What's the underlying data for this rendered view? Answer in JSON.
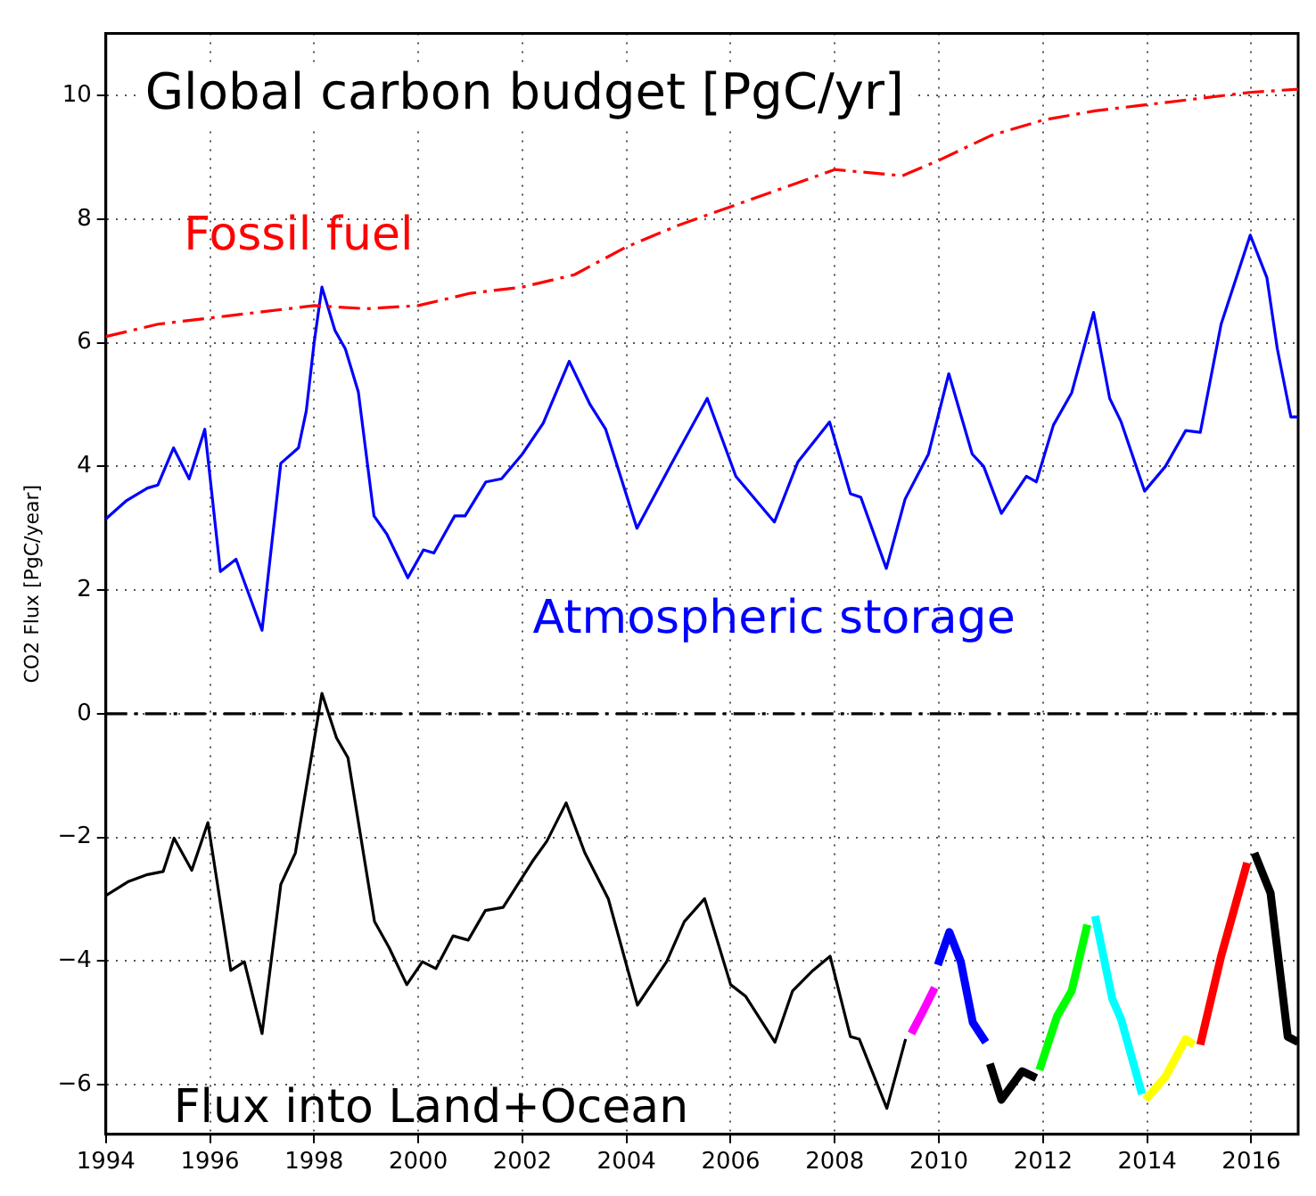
{
  "chart_data": {
    "type": "line",
    "title": "Global carbon budget [PgC/yr]",
    "ylabel": "CO2 Flux [PgC/year]",
    "xlim": [
      1994,
      2016.9
    ],
    "xticks": [
      1994,
      1996,
      1998,
      2000,
      2002,
      2004,
      2006,
      2008,
      2010,
      2012,
      2014,
      2016
    ],
    "ylim": [
      -6.8,
      11
    ],
    "yticks": [
      -6,
      -4,
      -2,
      0,
      2,
      4,
      6,
      8,
      10
    ],
    "grid": true,
    "legend": false,
    "marker": "none",
    "ref_lines": [
      {
        "axis": "y",
        "value": 0,
        "color": "#000000",
        "line_style": "dashed"
      }
    ],
    "series": [
      {
        "name": "Fossil fuel",
        "color": "#ff0000",
        "line_style": "dashed",
        "x": [
          1994,
          1995,
          1996,
          1997,
          1998,
          1999,
          2000,
          2001,
          2002,
          2003,
          2004,
          2005,
          2006,
          2007,
          2008,
          2009.3,
          2010,
          2011,
          2012,
          2013,
          2014,
          2015,
          2016,
          2016.9
        ],
        "values": [
          6.1,
          6.3,
          6.4,
          6.5,
          6.6,
          6.55,
          6.6,
          6.8,
          6.9,
          7.1,
          7.55,
          7.9,
          8.2,
          8.5,
          8.8,
          8.7,
          8.95,
          9.35,
          9.6,
          9.75,
          9.85,
          9.95,
          10.05,
          10.1
        ]
      },
      {
        "name": "Atmospheric storage",
        "color": "#0000ff",
        "x": [
          1994,
          1994.4,
          1994.8,
          1995,
          1995.3,
          1995.6,
          1995.9,
          1996.2,
          1996.5,
          1997,
          1997.36,
          1997.7,
          1997.85,
          1998,
          1998.15,
          1998.4,
          1998.6,
          1998.85,
          1999.15,
          1999.4,
          1999.8,
          2000.1,
          2000.3,
          2000.7,
          2000.9,
          2001.3,
          2001.6,
          2002,
          2002.4,
          2002.9,
          2003.3,
          2003.6,
          2003.9,
          2004.2,
          2004.88,
          2005.55,
          2006.1,
          2006.84,
          2007.29,
          2007.9,
          2008.3,
          2008.5,
          2008.99,
          2009.35,
          2009.8,
          2010.19,
          2010.64,
          2010.86,
          2011.2,
          2011.68,
          2011.87,
          2012.2,
          2012.55,
          2012.97,
          2013.28,
          2013.5,
          2013.95,
          2014.35,
          2014.74,
          2015.02,
          2015.42,
          2015.98,
          2016.3,
          2016.5,
          2016.76,
          2016.9
        ],
        "values": [
          3.15,
          3.45,
          3.65,
          3.7,
          4.3,
          3.8,
          4.6,
          2.3,
          2.5,
          1.35,
          4.05,
          4.3,
          4.9,
          6,
          6.9,
          6.2,
          5.9,
          5.2,
          3.2,
          2.9,
          2.2,
          2.65,
          2.6,
          3.2,
          3.2,
          3.75,
          3.8,
          4.2,
          4.7,
          5.7,
          5,
          4.6,
          3.8,
          3,
          4.07,
          5.1,
          3.84,
          3.1,
          4.07,
          4.72,
          3.56,
          3.5,
          2.35,
          3.47,
          4.2,
          5.5,
          4.2,
          4,
          3.24,
          3.84,
          3.75,
          4.67,
          5.19,
          6.49,
          5.1,
          4.72,
          3.6,
          4,
          4.58,
          4.55,
          6.3,
          7.74,
          7.05,
          5.9,
          4.8,
          4.8
        ]
      },
      {
        "name": "Flux into Land+Ocean",
        "color": "#000000",
        "x": [
          1994,
          1994.44,
          1994.8,
          1995.1,
          1995.31,
          1995.65,
          1995.96,
          1996.4,
          1996.66,
          1997,
          1997.36,
          1997.64,
          1998.15,
          1998.43,
          1998.65,
          1999.16,
          1999.44,
          1999.78,
          2000.08,
          2000.34,
          2000.67,
          2000.96,
          2001.29,
          2001.63,
          2002.19,
          2002.47,
          2002.84,
          2003.2,
          2003.65,
          2004.21,
          2004.77,
          2005.11,
          2005.5,
          2006,
          2006.29,
          2006.85,
          2007.19,
          2007.58,
          2007.91,
          2008.3,
          2008.47,
          2009,
          2009.36
        ],
        "values": [
          -2.94,
          -2.71,
          -2.6,
          -2.55,
          -2.01,
          -2.53,
          -1.76,
          -4.15,
          -4.01,
          -5.17,
          -2.76,
          -2.25,
          0.33,
          -0.39,
          -0.71,
          -3.36,
          -3.78,
          -4.38,
          -4.01,
          -4.12,
          -3.59,
          -3.66,
          -3.18,
          -3.13,
          -2.39,
          -2.06,
          -1.44,
          -2.25,
          -2.99,
          -4.71,
          -4.01,
          -3.36,
          -2.99,
          -4.38,
          -4.57,
          -5.31,
          -4.48,
          -4.15,
          -3.92,
          -5.22,
          -5.26,
          -6.38,
          -5.26
        ]
      },
      {
        "color": "#ff00ff",
        "x": [
          2009.47,
          2009.7,
          2009.92
        ],
        "values": [
          -5.17,
          -4.8,
          -4.43
        ]
      },
      {
        "color": "#0000ff",
        "x": [
          2009.98,
          2010.2,
          2010.42,
          2010.65,
          2010.9
        ],
        "values": [
          -4.06,
          -3.53,
          -4.01,
          -4.99,
          -5.31
        ]
      },
      {
        "color": "#000000",
        "x": [
          2010.98,
          2011.2,
          2011.6,
          2011.87
        ],
        "values": [
          -5.66,
          -6.24,
          -5.78,
          -5.89
        ]
      },
      {
        "color": "#00ff00",
        "x": [
          2011.93,
          2012.27,
          2012.55,
          2012.85
        ],
        "values": [
          -5.76,
          -4.89,
          -4.48,
          -3.41
        ]
      },
      {
        "color": "#00ffff",
        "x": [
          2013,
          2013.33,
          2013.5,
          2013.9
        ],
        "values": [
          -3.27,
          -4.61,
          -4.94,
          -6.15
        ]
      },
      {
        "color": "#ffff00",
        "x": [
          2013.97,
          2014.35,
          2014.74,
          2014.9
        ],
        "values": [
          -6.24,
          -5.87,
          -5.26,
          -5.35
        ]
      },
      {
        "color": "#ff0000",
        "x": [
          2015.02,
          2015.42,
          2015.92
        ],
        "values": [
          -5.35,
          -3.92,
          -2.41
        ]
      },
      {
        "color": "#000000",
        "x": [
          2016.06,
          2016.37,
          2016.7,
          2016.9
        ],
        "values": [
          -2.25,
          -2.9,
          -5.22,
          -5.31
        ]
      }
    ]
  }
}
